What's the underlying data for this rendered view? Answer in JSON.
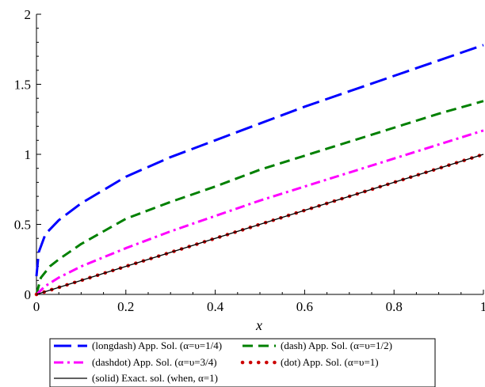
{
  "chart_data": {
    "type": "line",
    "title": "",
    "xlabel": "x",
    "ylabel": "",
    "xlim": [
      0,
      1
    ],
    "ylim": [
      0,
      2
    ],
    "grid": false,
    "legend_position": "bottom",
    "x_ticks": [
      {
        "value": 0,
        "label": "0"
      },
      {
        "value": 0.2,
        "label": "0.2"
      },
      {
        "value": 0.4,
        "label": "0.4"
      },
      {
        "value": 0.6,
        "label": "0.6"
      },
      {
        "value": 0.8,
        "label": "0.8"
      },
      {
        "value": 1,
        "label": "1"
      }
    ],
    "y_ticks": [
      {
        "value": 0,
        "label": "0"
      },
      {
        "value": 0.5,
        "label": "0.5"
      },
      {
        "value": 1,
        "label": "1"
      },
      {
        "value": 1.5,
        "label": "1.5"
      },
      {
        "value": 2,
        "label": "2"
      }
    ],
    "series": [
      {
        "name": "(longdash) App. Sol. (α=υ=1/4)",
        "color": "#0000ff",
        "style": "longdash",
        "x": [
          0,
          0.005,
          0.02,
          0.05,
          0.1,
          0.2,
          0.3,
          0.4,
          0.5,
          0.6,
          0.7,
          0.8,
          0.9,
          1
        ],
        "y": [
          0.13,
          0.3,
          0.43,
          0.53,
          0.65,
          0.84,
          0.98,
          1.1,
          1.22,
          1.34,
          1.45,
          1.56,
          1.67,
          1.78
        ]
      },
      {
        "name": "(dash) App. Sol. (α=υ=1/2)",
        "color": "#008000",
        "style": "dash",
        "x": [
          0,
          0.01,
          0.03,
          0.05,
          0.1,
          0.2,
          0.3,
          0.4,
          0.5,
          0.6,
          0.7,
          0.8,
          0.9,
          1
        ],
        "y": [
          0,
          0.12,
          0.2,
          0.25,
          0.36,
          0.54,
          0.66,
          0.77,
          0.89,
          0.99,
          1.09,
          1.19,
          1.29,
          1.38
        ]
      },
      {
        "name": "(dashdot) App. Sol. (α=υ=3/4)",
        "color": "#ff00ff",
        "style": "dashdot",
        "x": [
          0,
          0.02,
          0.05,
          0.1,
          0.2,
          0.3,
          0.4,
          0.5,
          0.6,
          0.7,
          0.8,
          0.9,
          1
        ],
        "y": [
          0,
          0.06,
          0.12,
          0.2,
          0.33,
          0.45,
          0.56,
          0.67,
          0.77,
          0.87,
          0.97,
          1.07,
          1.17
        ]
      },
      {
        "name": "(dot) App. Sol. (α=υ=1)",
        "color": "#cc0000",
        "style": "dot",
        "x": [
          0,
          1
        ],
        "y": [
          0,
          1
        ]
      },
      {
        "name": "(solid) Exact. sol. (when, α=1)",
        "color": "#000000",
        "style": "solid",
        "x": [
          0,
          1
        ],
        "y": [
          0,
          1
        ]
      }
    ]
  }
}
